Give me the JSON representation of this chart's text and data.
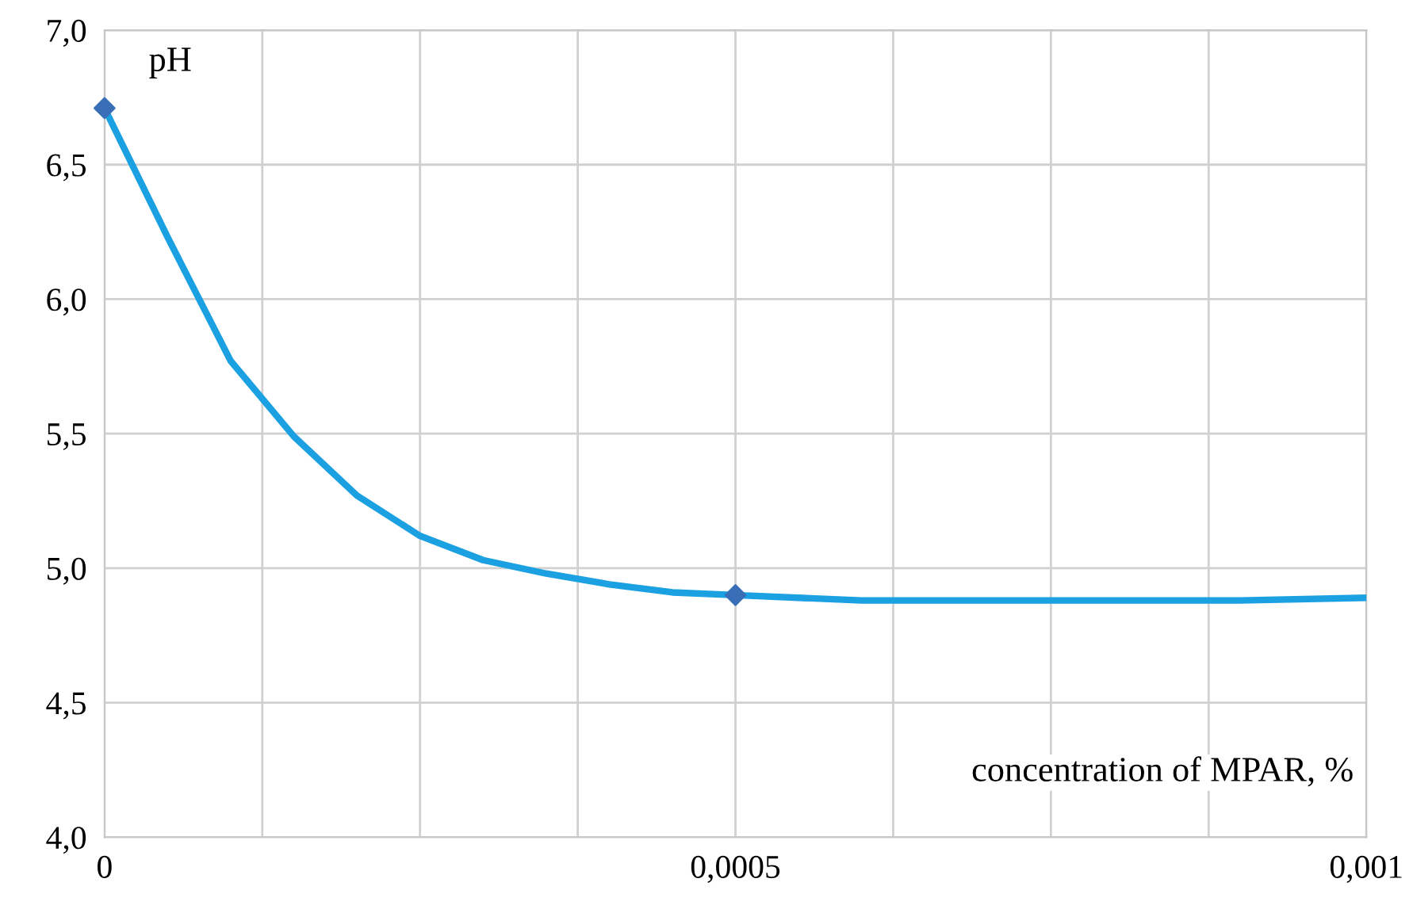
{
  "chart_data": {
    "type": "line",
    "xlabel": "concentration of MPAR, %",
    "ylabel": "pH",
    "xlim": [
      0,
      0.001
    ],
    "ylim": [
      4.0,
      7.0
    ],
    "xticks": [
      {
        "value": 0,
        "label": "0"
      },
      {
        "value": 0.000125,
        "label": null
      },
      {
        "value": 0.00025,
        "label": null
      },
      {
        "value": 0.000375,
        "label": null
      },
      {
        "value": 0.0005,
        "label": "0,0005"
      },
      {
        "value": 0.000625,
        "label": null
      },
      {
        "value": 0.00075,
        "label": null
      },
      {
        "value": 0.000875,
        "label": null
      },
      {
        "value": 0.001,
        "label": "0,001"
      }
    ],
    "yticks": [
      {
        "value": 4.0,
        "label": "4,0"
      },
      {
        "value": 4.5,
        "label": "4,5"
      },
      {
        "value": 5.0,
        "label": "5,0"
      },
      {
        "value": 5.5,
        "label": "5,5"
      },
      {
        "value": 6.0,
        "label": "6,0"
      },
      {
        "value": 6.5,
        "label": "6,5"
      },
      {
        "value": 7.0,
        "label": "7,0"
      }
    ],
    "grid": true,
    "legend": false,
    "series": [
      {
        "color": "#1ba1e2",
        "marker": "none",
        "line_style": "solid",
        "x": [
          0,
          5e-05,
          0.0001,
          0.00015,
          0.0002,
          0.00025,
          0.0003,
          0.00035,
          0.0004,
          0.00045,
          0.0005,
          0.0006,
          0.0007,
          0.0008,
          0.0009,
          0.001
        ],
        "values": [
          6.71,
          6.23,
          5.77,
          5.49,
          5.27,
          5.12,
          5.03,
          4.98,
          4.94,
          4.91,
          4.9,
          4.88,
          4.88,
          4.88,
          4.88,
          4.89
        ]
      },
      {
        "type": "scatter",
        "color": "#3a6fb7",
        "marker": "diamond",
        "x": [
          0,
          0.0005
        ],
        "values": [
          6.71,
          4.9
        ]
      }
    ]
  }
}
